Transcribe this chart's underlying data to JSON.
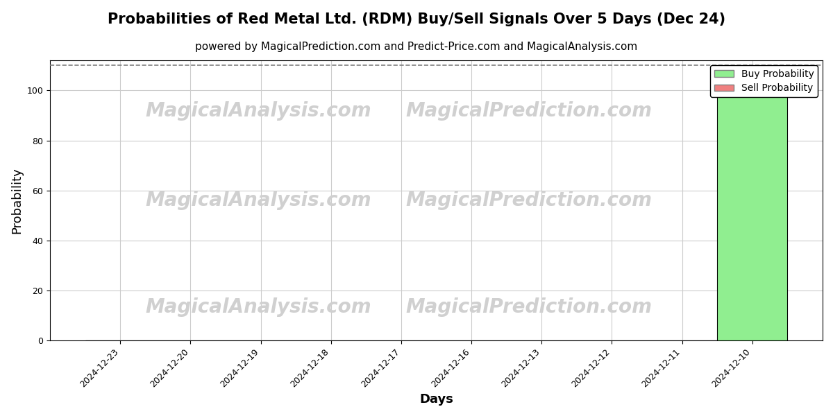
{
  "title": "Probabilities of Red Metal Ltd. (RDM) Buy/Sell Signals Over 5 Days (Dec 24)",
  "subtitle": "powered by MagicalPrediction.com and Predict-Price.com and MagicalAnalysis.com",
  "xlabel": "Days",
  "ylabel": "Probability",
  "dates": [
    "2024-12-23",
    "2024-12-20",
    "2024-12-19",
    "2024-12-18",
    "2024-12-17",
    "2024-12-16",
    "2024-12-13",
    "2024-12-12",
    "2024-12-11",
    "2024-12-10"
  ],
  "buy_values": [
    0,
    0,
    0,
    0,
    0,
    0,
    0,
    0,
    0,
    100
  ],
  "sell_values": [
    0,
    0,
    0,
    0,
    0,
    0,
    0,
    0,
    0,
    0
  ],
  "buy_color": "#90EE90",
  "sell_color": "#F08080",
  "bar_edge_color": "#000000",
  "ylim": [
    0,
    112
  ],
  "yticks": [
    0,
    20,
    40,
    60,
    80,
    100
  ],
  "dashed_line_y": 110,
  "watermark1": "MagicalAnalysis.com",
  "watermark2": "MagicalPrediction.com",
  "watermark_color": "#d0d0d0",
  "watermark_fontsize": 20,
  "background_color": "#ffffff",
  "grid_color": "#cccccc",
  "title_fontsize": 15,
  "subtitle_fontsize": 11,
  "axis_label_fontsize": 13,
  "tick_fontsize": 9,
  "legend_fontsize": 10,
  "bar_width": 1.0
}
